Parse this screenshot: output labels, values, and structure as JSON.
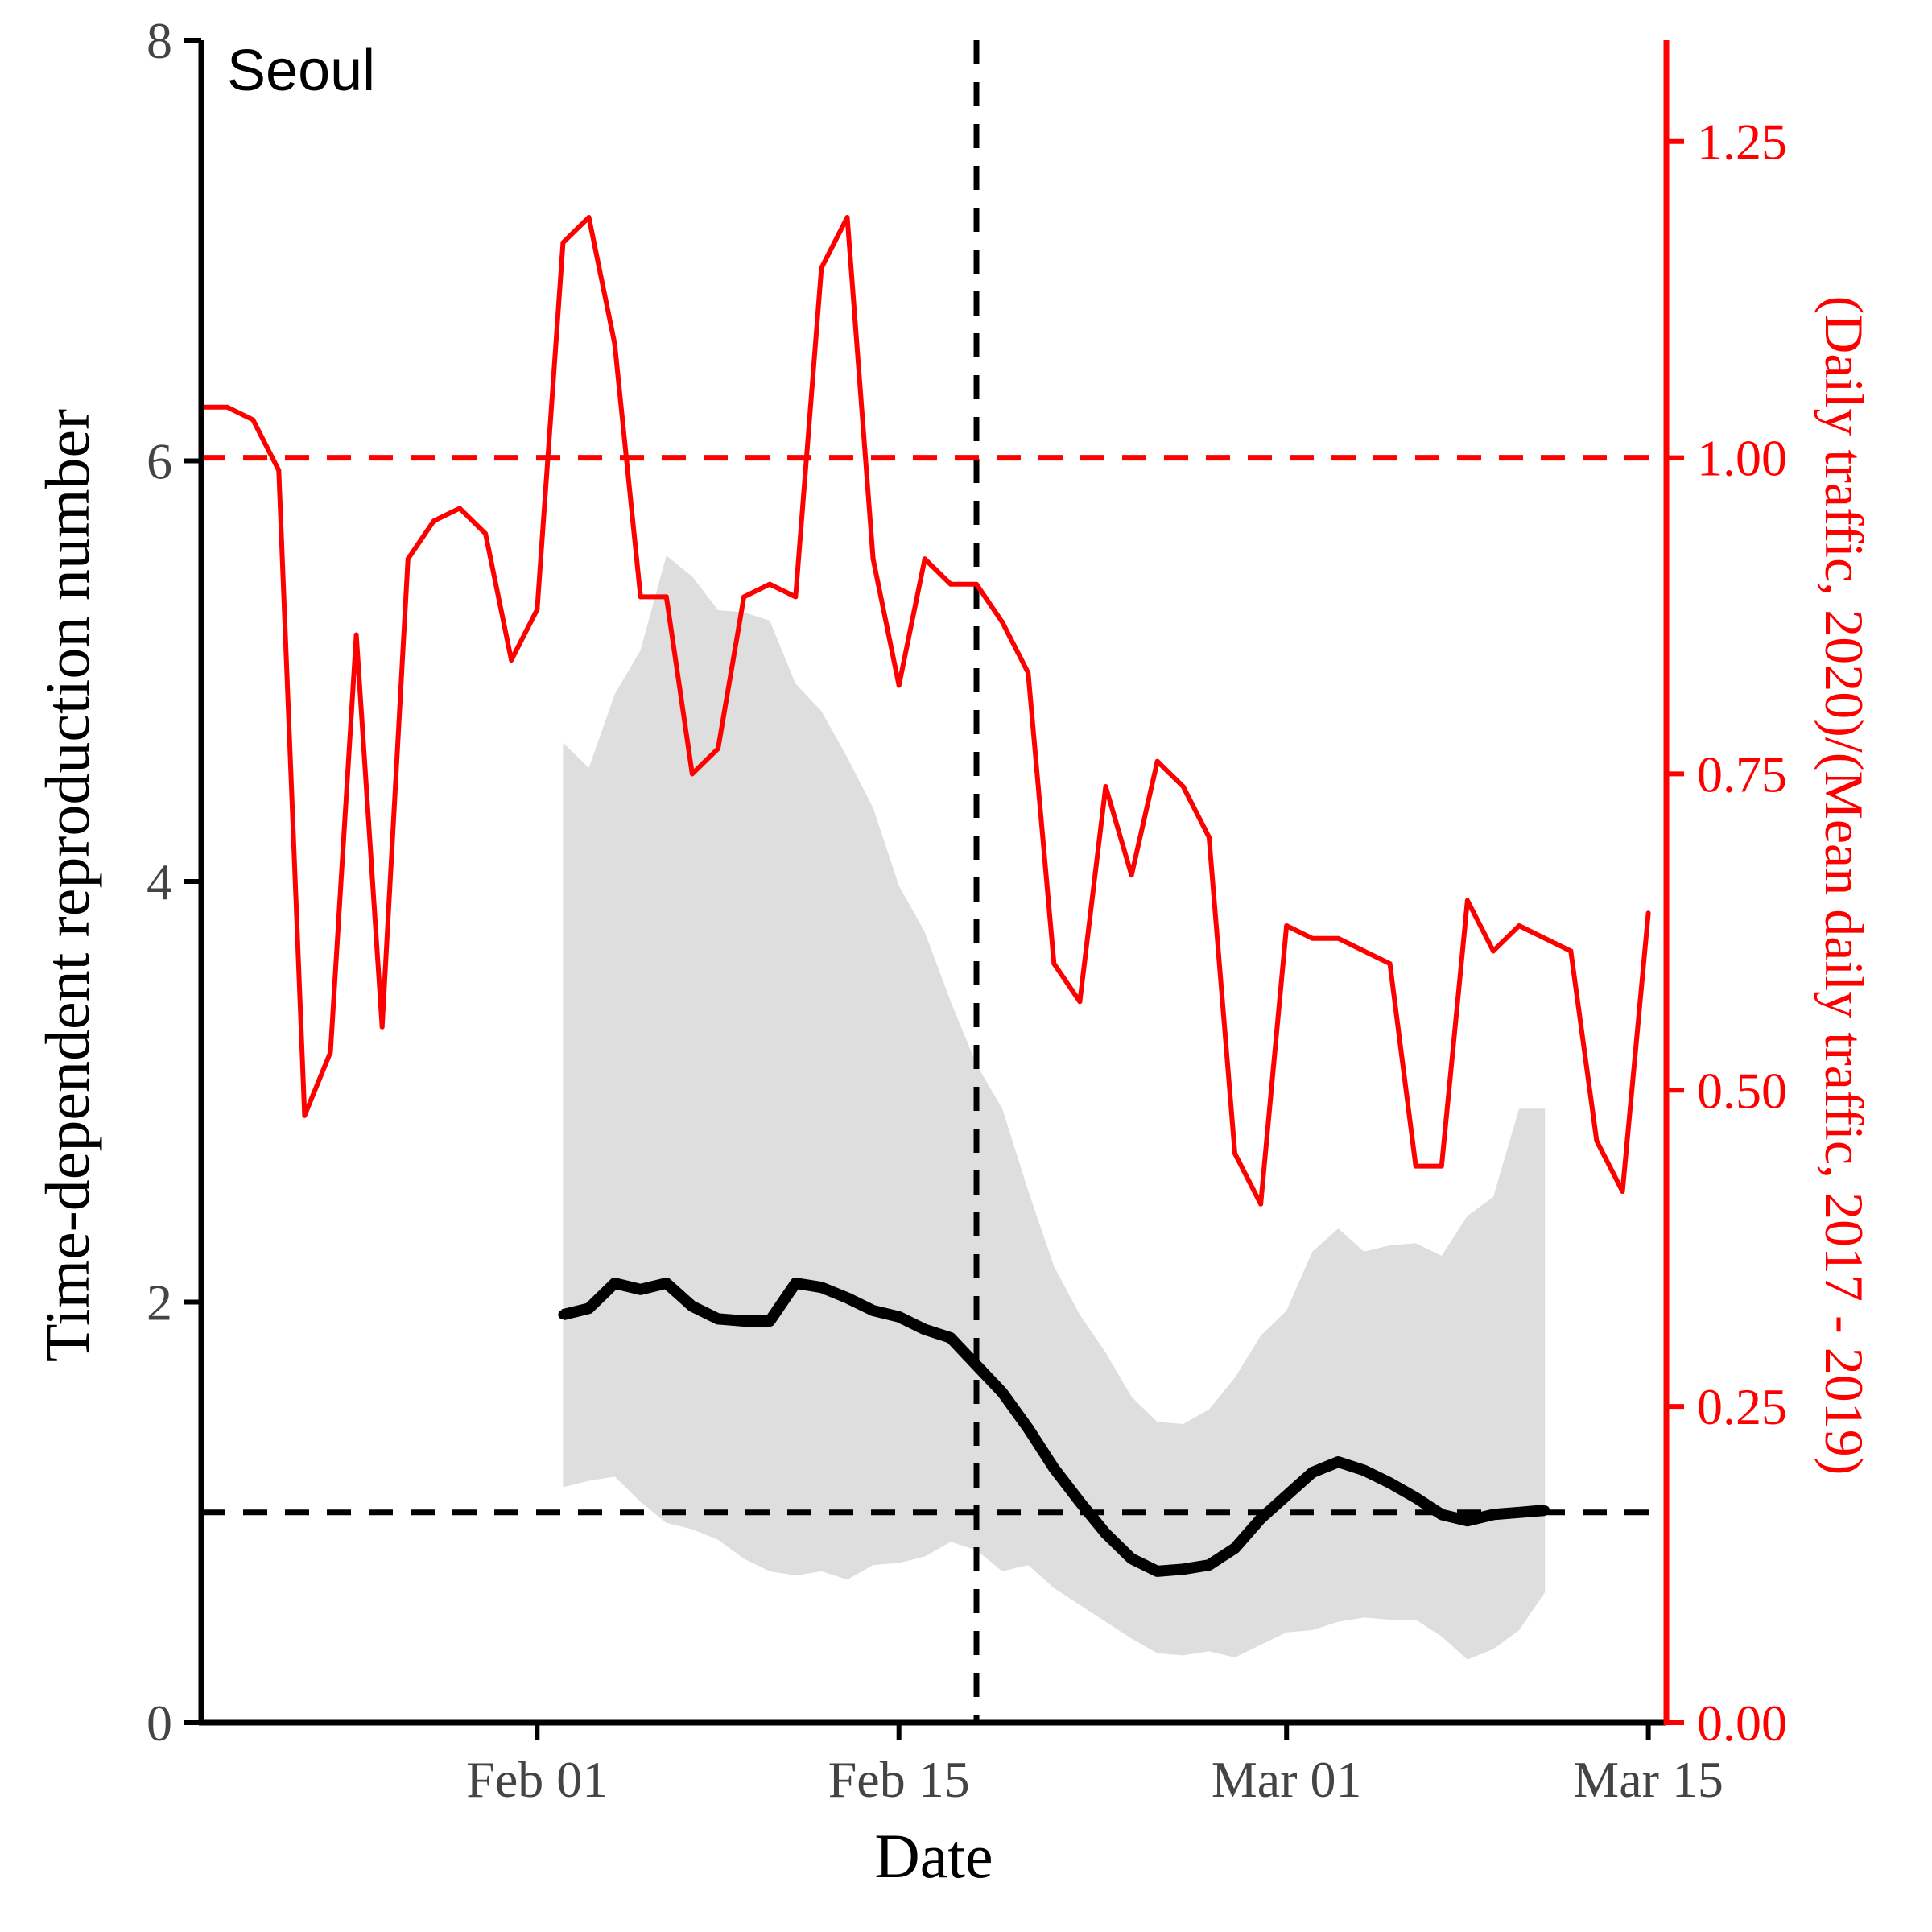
{
  "chart_data": {
    "type": "line",
    "panel_label": "Seoul",
    "xlabel": "Date",
    "ylabel_left": "Time-dependent reproduction number",
    "ylabel_right": "(Daily traffic, 2020)/(Mean daily traffic, 2017 - 2019)",
    "x_range": [
      "2020-01-19",
      "2020-03-15"
    ],
    "x_ticks": [
      {
        "date": "2020-02-01",
        "label": "Feb 01"
      },
      {
        "date": "2020-02-15",
        "label": "Feb 15"
      },
      {
        "date": "2020-03-01",
        "label": "Mar 01"
      },
      {
        "date": "2020-03-15",
        "label": "Mar 15"
      }
    ],
    "ylim_left": [
      0,
      8
    ],
    "y_ticks_left": [
      0,
      2,
      4,
      6,
      8
    ],
    "ylim_right": [
      0,
      1.33
    ],
    "y_ticks_right": [
      "0.00",
      "0.25",
      "0.50",
      "0.75",
      "1.00",
      "1.25"
    ],
    "reference_lines": {
      "vertical_date": "2020-02-18",
      "left_axis_value": 1,
      "right_axis_value": 1.0
    },
    "series": [
      {
        "key": "traffic",
        "axis": "right",
        "color": "#ff0000",
        "x": [
          "2020-01-19",
          "2020-01-20",
          "2020-01-21",
          "2020-01-22",
          "2020-01-23",
          "2020-01-24",
          "2020-01-25",
          "2020-01-26",
          "2020-01-27",
          "2020-01-28",
          "2020-01-29",
          "2020-01-30",
          "2020-01-31",
          "2020-02-01",
          "2020-02-02",
          "2020-02-03",
          "2020-02-04",
          "2020-02-05",
          "2020-02-06",
          "2020-02-07",
          "2020-02-08",
          "2020-02-09",
          "2020-02-10",
          "2020-02-11",
          "2020-02-12",
          "2020-02-13",
          "2020-02-14",
          "2020-02-15",
          "2020-02-16",
          "2020-02-17",
          "2020-02-18",
          "2020-02-19",
          "2020-02-20",
          "2020-02-21",
          "2020-02-22",
          "2020-02-23",
          "2020-02-24",
          "2020-02-25",
          "2020-02-26",
          "2020-02-27",
          "2020-02-28",
          "2020-02-29",
          "2020-03-01",
          "2020-03-02",
          "2020-03-03",
          "2020-03-04",
          "2020-03-05",
          "2020-03-06",
          "2020-03-07",
          "2020-03-08",
          "2020-03-09",
          "2020-03-10",
          "2020-03-11",
          "2020-03-12",
          "2020-03-13",
          "2020-03-14",
          "2020-03-15"
        ],
        "values": [
          1.04,
          1.04,
          1.03,
          0.99,
          0.48,
          0.53,
          0.86,
          0.55,
          0.92,
          0.95,
          0.96,
          0.94,
          0.84,
          0.88,
          1.17,
          1.19,
          1.09,
          0.89,
          0.89,
          0.75,
          0.77,
          0.89,
          0.9,
          0.89,
          1.15,
          1.19,
          0.92,
          0.82,
          0.92,
          0.9,
          0.9,
          0.87,
          0.83,
          0.6,
          0.57,
          0.74,
          0.67,
          0.76,
          0.74,
          0.7,
          0.45,
          0.41,
          0.63,
          0.62,
          0.62,
          0.61,
          0.6,
          0.44,
          0.44,
          0.65,
          0.61,
          0.63,
          0.62,
          0.61,
          0.46,
          0.42,
          0.64
        ]
      },
      {
        "key": "rt",
        "axis": "left",
        "color": "#000000",
        "x": [
          "2020-02-02",
          "2020-02-03",
          "2020-02-04",
          "2020-02-05",
          "2020-02-06",
          "2020-02-07",
          "2020-02-08",
          "2020-02-09",
          "2020-02-10",
          "2020-02-11",
          "2020-02-12",
          "2020-02-13",
          "2020-02-14",
          "2020-02-15",
          "2020-02-16",
          "2020-02-17",
          "2020-02-18",
          "2020-02-19",
          "2020-02-20",
          "2020-02-21",
          "2020-02-22",
          "2020-02-23",
          "2020-02-24",
          "2020-02-25",
          "2020-02-26",
          "2020-02-27",
          "2020-02-28",
          "2020-02-29",
          "2020-03-01",
          "2020-03-02",
          "2020-03-03",
          "2020-03-04",
          "2020-03-05",
          "2020-03-06",
          "2020-03-07",
          "2020-03-08",
          "2020-03-09",
          "2020-03-10",
          "2020-03-11"
        ],
        "values": [
          1.94,
          1.97,
          2.09,
          2.06,
          2.09,
          1.98,
          1.92,
          1.91,
          1.91,
          2.09,
          2.07,
          2.02,
          1.96,
          1.93,
          1.87,
          1.83,
          1.7,
          1.57,
          1.4,
          1.21,
          1.05,
          0.9,
          0.78,
          0.72,
          0.73,
          0.75,
          0.83,
          0.97,
          1.08,
          1.19,
          1.24,
          1.2,
          1.14,
          1.07,
          0.99,
          0.96,
          0.99,
          1.0,
          1.01
        ],
        "lower": [
          1.12,
          1.15,
          1.17,
          1.05,
          0.95,
          0.92,
          0.87,
          0.78,
          0.72,
          0.7,
          0.72,
          0.68,
          0.75,
          0.76,
          0.79,
          0.86,
          0.82,
          0.72,
          0.75,
          0.64,
          0.56,
          0.48,
          0.4,
          0.33,
          0.32,
          0.34,
          0.31,
          0.37,
          0.43,
          0.44,
          0.48,
          0.5,
          0.49,
          0.49,
          0.41,
          0.3,
          0.35,
          0.44,
          0.62
        ],
        "upper": [
          4.66,
          4.54,
          4.89,
          5.1,
          5.55,
          5.45,
          5.29,
          5.28,
          5.24,
          4.94,
          4.81,
          4.59,
          4.35,
          3.98,
          3.76,
          3.43,
          3.13,
          2.92,
          2.53,
          2.17,
          1.94,
          1.76,
          1.55,
          1.43,
          1.42,
          1.49,
          1.64,
          1.84,
          1.96,
          2.24,
          2.35,
          2.24,
          2.27,
          2.28,
          2.22,
          2.41,
          2.5,
          2.92,
          2.92
        ]
      }
    ]
  }
}
